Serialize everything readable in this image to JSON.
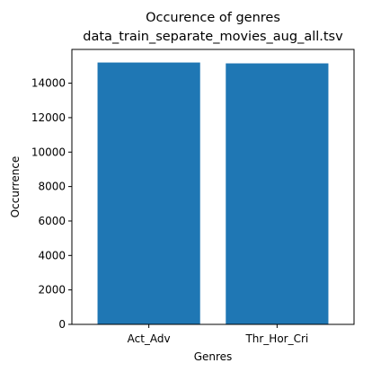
{
  "chart_data": {
    "type": "bar",
    "title": "Occurence of genres",
    "subtitle": "data_train_separate_movies_aug_all.tsv",
    "xlabel": "Genres",
    "ylabel": "Occurrence",
    "categories": [
      "Act_Adv",
      "Thr_Hor_Cri"
    ],
    "values": [
      15200,
      15150
    ],
    "ylim": [
      0,
      15960
    ],
    "yticks": [
      0,
      2000,
      4000,
      6000,
      8000,
      10000,
      12000,
      14000
    ],
    "bar_color": "#1f77b4",
    "grid": false,
    "legend": "none"
  }
}
